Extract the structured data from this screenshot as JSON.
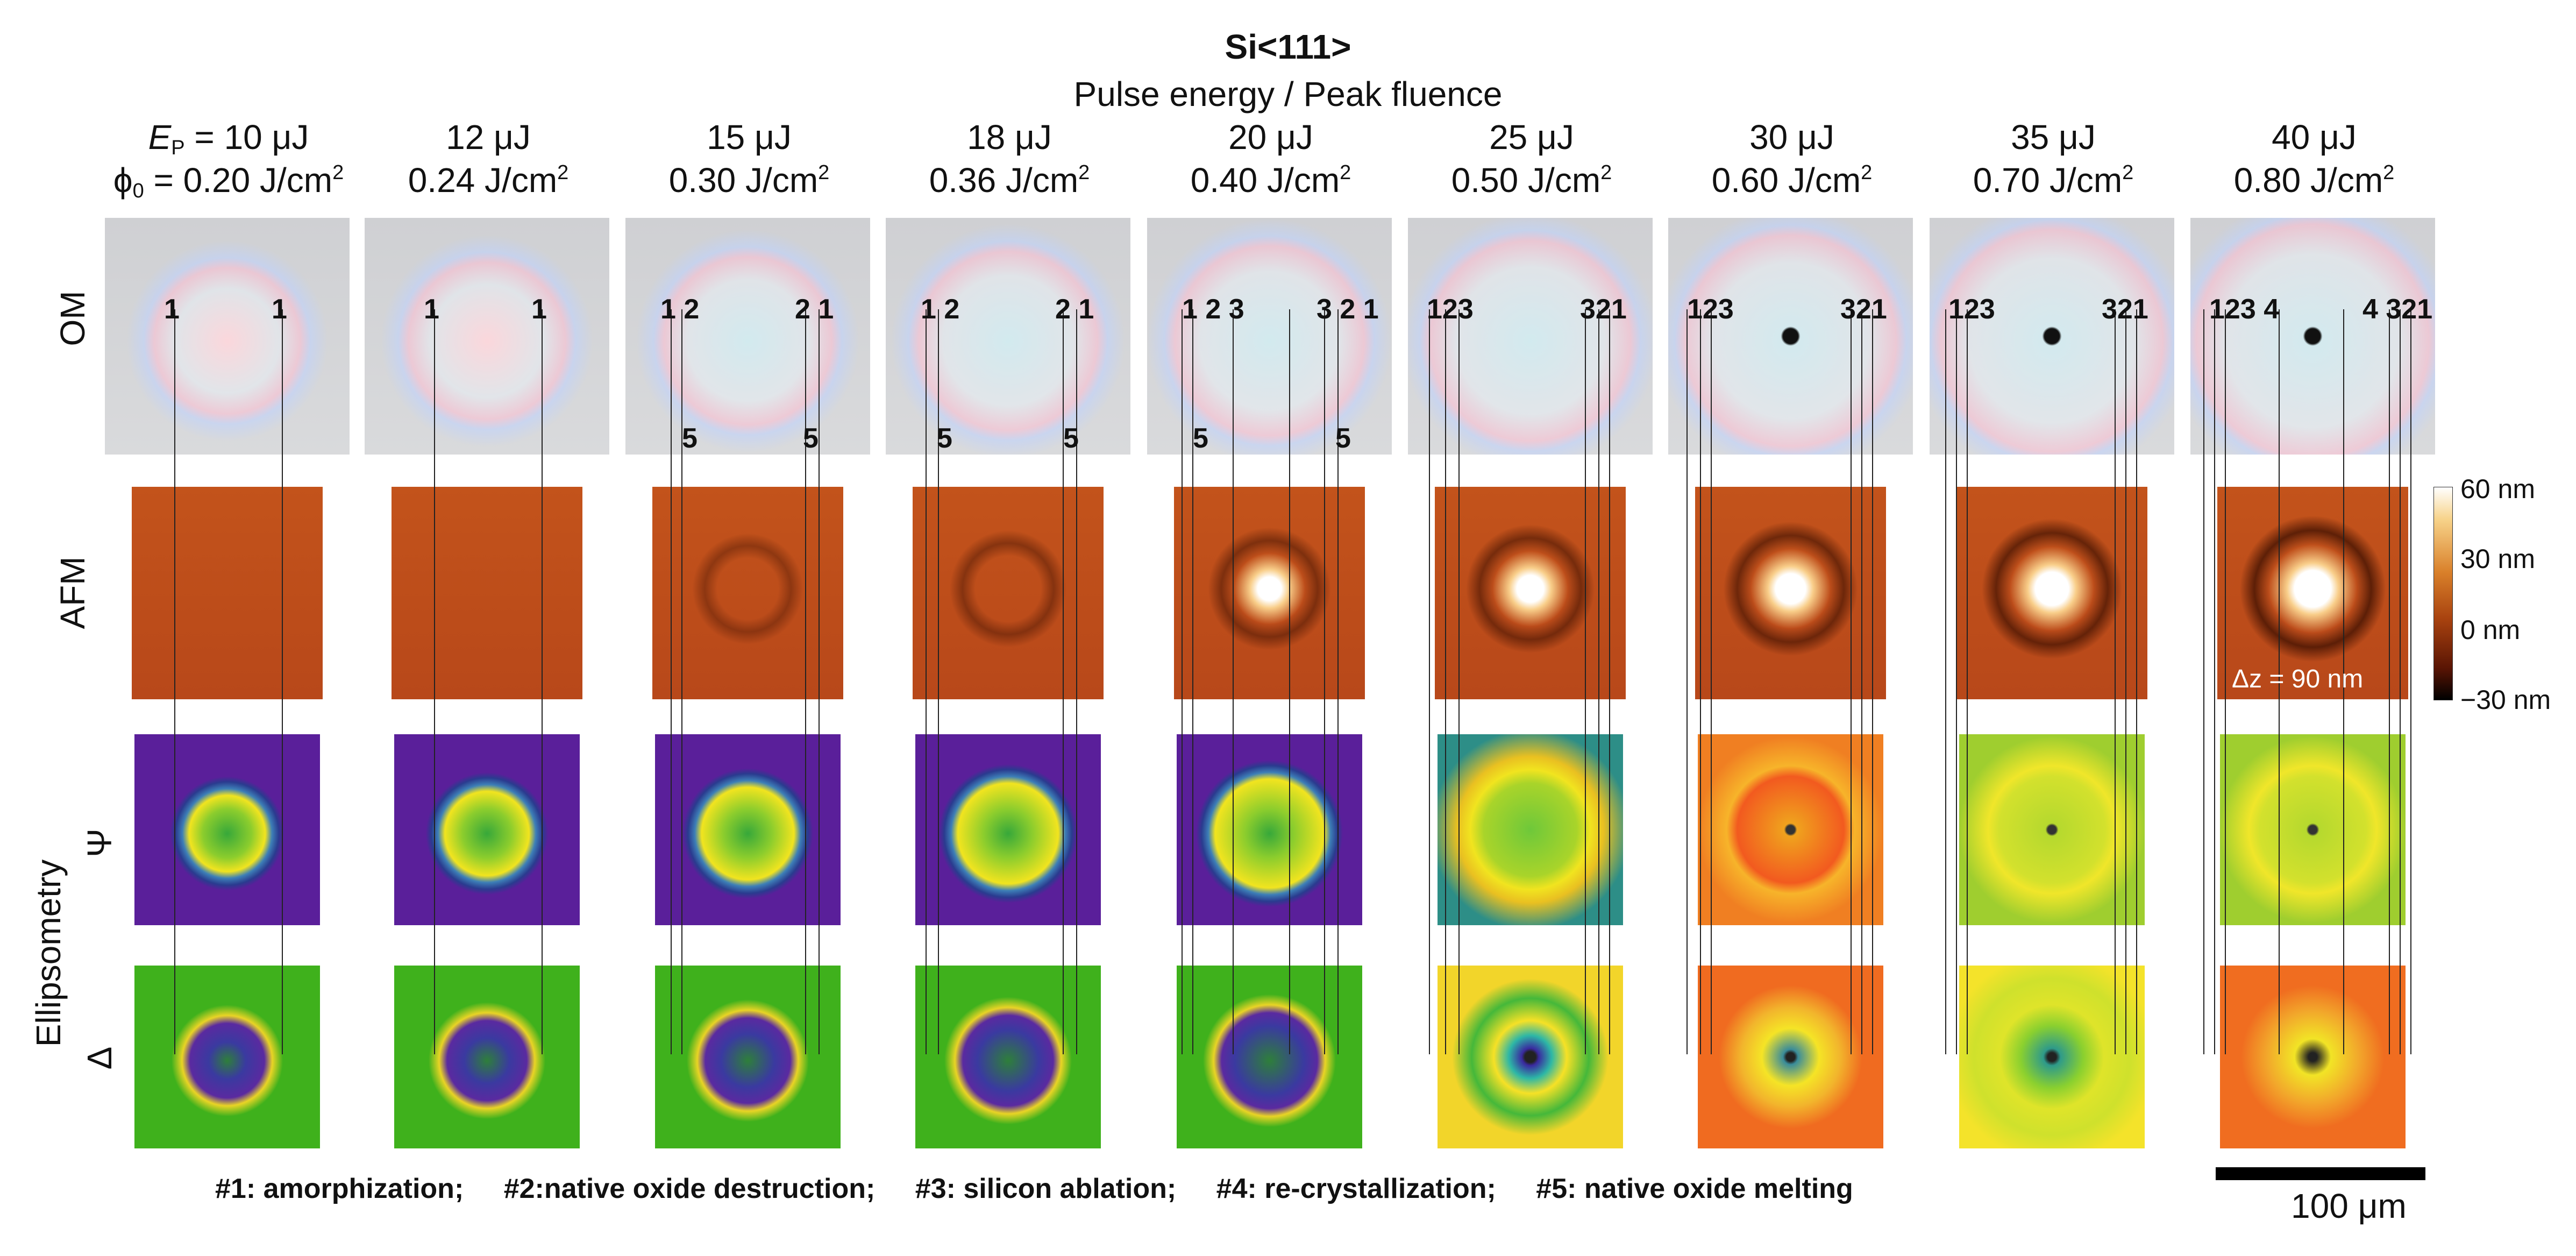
{
  "title": "Si<111>",
  "subtitle": "Pulse energy / Peak fluence",
  "first_col_energy_prefix": "E",
  "first_col_energy_sub": "P",
  "first_col_fluence_prefix": "ϕ",
  "first_col_fluence_sub": "0",
  "columns": [
    {
      "energy": "= 10 μJ",
      "fluence": "= 0.20 J/cm",
      "exp": "2"
    },
    {
      "energy": "12 μJ",
      "fluence": "0.24 J/cm",
      "exp": "2"
    },
    {
      "energy": "15 μJ",
      "fluence": "0.30 J/cm",
      "exp": "2"
    },
    {
      "energy": "18 μJ",
      "fluence": "0.36 J/cm",
      "exp": "2"
    },
    {
      "energy": "20 μJ",
      "fluence": "0.40 J/cm",
      "exp": "2"
    },
    {
      "energy": "25 μJ",
      "fluence": "0.50 J/cm",
      "exp": "2"
    },
    {
      "energy": "30 μJ",
      "fluence": "0.60 J/cm",
      "exp": "2"
    },
    {
      "energy": "35 μJ",
      "fluence": "0.70 J/cm",
      "exp": "2"
    },
    {
      "energy": "40 μJ",
      "fluence": "0.80 J/cm",
      "exp": "2"
    }
  ],
  "row_labels": {
    "om": "OM",
    "afm": "AFM",
    "ellipsometry": "Ellipsometry",
    "psi": "Ψ",
    "delta": "Δ"
  },
  "om_markers": [
    [
      "1",
      "1"
    ],
    [
      "1",
      "1"
    ],
    [
      "1 2",
      "2 1"
    ],
    [
      "1 2",
      "2 1"
    ],
    [
      "1  2  3",
      "3  2 1"
    ],
    [
      "123",
      "321"
    ],
    [
      "123",
      "321"
    ],
    [
      "123",
      "321"
    ],
    [
      "123  4",
      "4  321"
    ]
  ],
  "melt_markers": [
    "5",
    "5",
    "5",
    "5",
    "5",
    "5"
  ],
  "colorbar": {
    "ticks": [
      "60 nm",
      "30 nm",
      "0 nm",
      "−30 nm"
    ],
    "dz_label": "Δz = 90 nm"
  },
  "legend": [
    "#1: amorphization;",
    "#2:native oxide destruction;",
    "#3: silicon ablation;",
    "#4: re-crystallization;",
    "#5: native oxide melting"
  ],
  "scale_bar": "100 μm",
  "colors": {
    "om_bg": "#d5d6d8",
    "afm_bg": "#c2521a",
    "psi_bg": "#5a1f9a",
    "delta_bg": "#3fb11c"
  }
}
